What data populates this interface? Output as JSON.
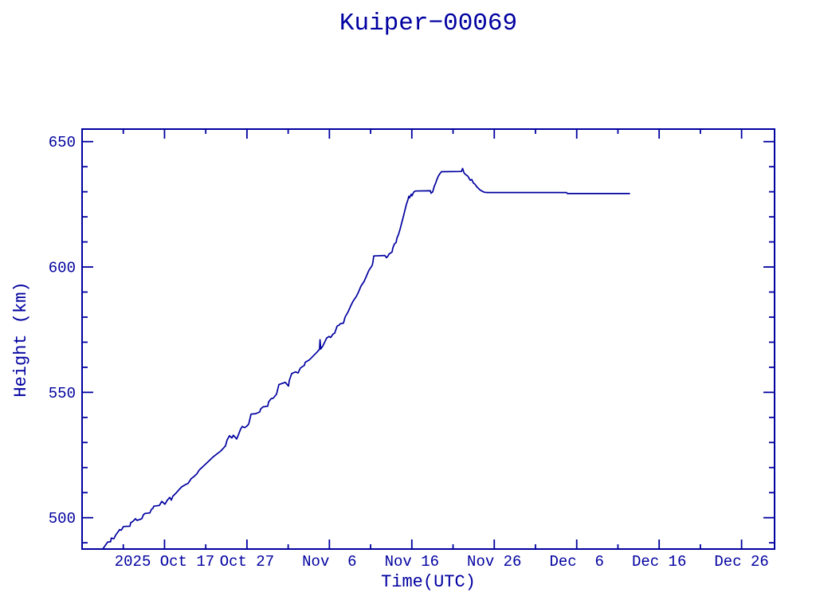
{
  "page": {
    "background_color": "#ffffff",
    "accent_color": "#0000A0"
  },
  "chart_data": {
    "type": "line",
    "title": "Kuiper−00069",
    "xlabel": "Time(UTC)",
    "ylabel": "Height (km)",
    "axis_color": "#0000A0",
    "grid": false,
    "legend": false,
    "ylim": [
      487.5,
      655
    ],
    "x_domain_days": [
      0,
      84
    ],
    "y_major_ticks": [
      500,
      550,
      600,
      650
    ],
    "y_minor_ticks": [
      490,
      510,
      520,
      530,
      540,
      560,
      570,
      580,
      590,
      610,
      620,
      630,
      640
    ],
    "x_major_ticks": [
      {
        "day": 10,
        "label": "2025 Oct 17"
      },
      {
        "day": 20,
        "label": "Oct 27"
      },
      {
        "day": 30,
        "label": "Nov  6"
      },
      {
        "day": 40,
        "label": "Nov 16"
      },
      {
        "day": 50,
        "label": "Nov 26"
      },
      {
        "day": 60,
        "label": "Dec  6"
      },
      {
        "day": 70,
        "label": "Dec 16"
      },
      {
        "day": 80,
        "label": "Dec 26"
      }
    ],
    "x_minor_ticks_days": [
      5,
      15,
      25,
      35,
      45,
      55,
      65,
      75
    ],
    "series": [
      {
        "name": "Kuiper-00069 height",
        "color": "#0000A0",
        "points": [
          [
            2.51,
            487.5
          ],
          [
            2.8,
            488.9
          ],
          [
            3.1,
            490.3
          ],
          [
            3.45,
            490.4
          ],
          [
            3.55,
            491.9
          ],
          [
            3.85,
            491.6
          ],
          [
            4.1,
            493.2
          ],
          [
            4.45,
            494.7
          ],
          [
            4.55,
            495.3
          ],
          [
            4.75,
            495.0
          ],
          [
            5.03,
            496.5
          ],
          [
            5.8,
            496.6
          ],
          [
            5.9,
            498.0
          ],
          [
            6.19,
            498.6
          ],
          [
            6.48,
            499.6
          ],
          [
            6.67,
            498.9
          ],
          [
            7.25,
            499.6
          ],
          [
            7.44,
            501.2
          ],
          [
            7.64,
            501.7
          ],
          [
            8.22,
            501.9
          ],
          [
            8.41,
            503.3
          ],
          [
            8.6,
            503.8
          ],
          [
            8.7,
            504.6
          ],
          [
            9.38,
            504.9
          ],
          [
            9.67,
            506.5
          ],
          [
            10.05,
            505.4
          ],
          [
            10.34,
            507.0
          ],
          [
            10.63,
            508.1
          ],
          [
            10.83,
            507.0
          ],
          [
            11.02,
            508.6
          ],
          [
            11.5,
            510.2
          ],
          [
            11.79,
            511.3
          ],
          [
            12.08,
            512.3
          ],
          [
            12.47,
            513.1
          ],
          [
            12.86,
            513.7
          ],
          [
            13.24,
            515.6
          ],
          [
            13.53,
            516.3
          ],
          [
            13.92,
            517.5
          ],
          [
            14.21,
            519.0
          ],
          [
            15.18,
            522.0
          ],
          [
            15.95,
            524.4
          ],
          [
            16.82,
            526.6
          ],
          [
            17.11,
            527.6
          ],
          [
            17.4,
            528.7
          ],
          [
            17.59,
            531.0
          ],
          [
            17.88,
            532.7
          ],
          [
            18.17,
            531.8
          ],
          [
            18.36,
            532.9
          ],
          [
            18.75,
            531.4
          ],
          [
            19.04,
            533.7
          ],
          [
            19.23,
            535.3
          ],
          [
            19.43,
            536.4
          ],
          [
            19.72,
            535.9
          ],
          [
            20.01,
            536.6
          ],
          [
            20.2,
            537.3
          ],
          [
            20.3,
            538.5
          ],
          [
            20.49,
            541.3
          ],
          [
            21.07,
            541.5
          ],
          [
            21.56,
            542.2
          ],
          [
            21.65,
            543.3
          ],
          [
            21.94,
            544.2
          ],
          [
            22.52,
            544.5
          ],
          [
            22.62,
            546.1
          ],
          [
            22.91,
            547.4
          ],
          [
            23.2,
            547.7
          ],
          [
            23.59,
            549.3
          ],
          [
            23.88,
            553.1
          ],
          [
            24.65,
            554.0
          ],
          [
            25.04,
            552.5
          ],
          [
            25.13,
            554.7
          ],
          [
            25.42,
            557.5
          ],
          [
            25.91,
            558.2
          ],
          [
            26.2,
            557.7
          ],
          [
            26.49,
            559.7
          ],
          [
            26.97,
            560.8
          ],
          [
            27.07,
            562.0
          ],
          [
            27.55,
            562.9
          ],
          [
            28.04,
            564.5
          ],
          [
            28.52,
            566.1
          ],
          [
            28.81,
            567.2
          ],
          [
            28.86,
            571.0
          ],
          [
            28.96,
            567.3
          ],
          [
            29.2,
            568.5
          ],
          [
            29.68,
            571.7
          ],
          [
            29.97,
            572.3
          ],
          [
            30.16,
            571.9
          ],
          [
            30.45,
            573.3
          ],
          [
            30.64,
            573.6
          ],
          [
            30.93,
            576.4
          ],
          [
            31.22,
            576.9
          ],
          [
            31.32,
            577.4
          ],
          [
            31.71,
            577.6
          ],
          [
            31.9,
            580.0
          ],
          [
            32.29,
            582.2
          ],
          [
            32.58,
            584.4
          ],
          [
            32.87,
            586.3
          ],
          [
            33.25,
            588.2
          ],
          [
            33.54,
            590.1
          ],
          [
            33.83,
            592.4
          ],
          [
            34.22,
            594.3
          ],
          [
            34.51,
            596.5
          ],
          [
            34.8,
            598.7
          ],
          [
            35.19,
            600.6
          ],
          [
            35.28,
            602.0
          ],
          [
            35.38,
            604.4
          ],
          [
            36.73,
            604.6
          ],
          [
            36.93,
            603.7
          ],
          [
            37.12,
            604.4
          ],
          [
            37.22,
            605.1
          ],
          [
            37.6,
            606.0
          ],
          [
            37.7,
            607.6
          ],
          [
            37.89,
            609.2
          ],
          [
            38.09,
            609.8
          ],
          [
            38.18,
            611.4
          ],
          [
            38.38,
            613.0
          ],
          [
            38.57,
            615.0
          ],
          [
            38.76,
            617.5
          ],
          [
            38.96,
            620.0
          ],
          [
            39.15,
            622.5
          ],
          [
            39.34,
            625.0
          ],
          [
            39.54,
            627.0
          ],
          [
            39.63,
            628.2
          ],
          [
            39.73,
            627.6
          ],
          [
            39.92,
            629.0
          ],
          [
            40.02,
            628.4
          ],
          [
            40.21,
            629.8
          ],
          [
            40.41,
            630.3
          ],
          [
            42.24,
            630.4
          ],
          [
            42.34,
            629.4
          ],
          [
            42.53,
            630.0
          ],
          [
            42.72,
            632.1
          ],
          [
            42.92,
            633.7
          ],
          [
            43.01,
            634.6
          ],
          [
            43.21,
            636.2
          ],
          [
            43.4,
            637.2
          ],
          [
            43.59,
            638.0
          ],
          [
            46.01,
            638.1
          ],
          [
            46.16,
            639.3
          ],
          [
            46.3,
            637.8
          ],
          [
            46.4,
            637.2
          ],
          [
            46.79,
            636.2
          ],
          [
            47.08,
            634.6
          ],
          [
            47.27,
            634.9
          ],
          [
            47.46,
            633.5
          ],
          [
            47.66,
            633.0
          ],
          [
            47.85,
            632.1
          ],
          [
            48.24,
            630.8
          ],
          [
            48.53,
            630.2
          ],
          [
            48.82,
            629.8
          ],
          [
            49.2,
            629.7
          ],
          [
            58.77,
            629.7
          ],
          [
            58.87,
            629.3
          ],
          [
            66.41,
            629.3
          ]
        ]
      }
    ]
  }
}
